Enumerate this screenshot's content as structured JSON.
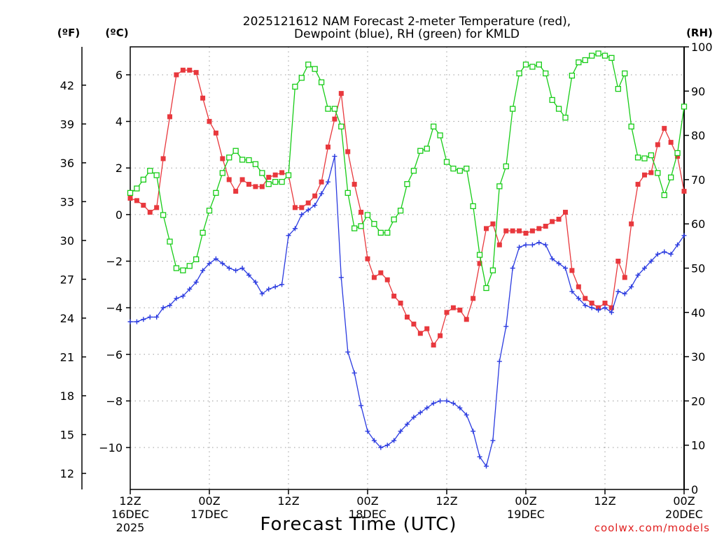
{
  "chart_data": {
    "type": "line",
    "title_line1": "2025121612 NAM Forecast 2-meter Temperature (red),",
    "title_line2": "Dewpoint (blue), RH (green) for KMLD",
    "xlabel": "Forecast Time (UTC)",
    "credit": "coolwx.com/models",
    "unit_f": "(ºF)",
    "unit_c": "(ºC)",
    "unit_rh": "(RH)",
    "x_range_hours": [
      0,
      84
    ],
    "y_celsius_range": [
      -11.8,
      7.2
    ],
    "y_rh_range": [
      0,
      100
    ],
    "x_ticks": [
      {
        "hour": 0,
        "line1": "12Z",
        "line2": "16DEC",
        "line3": "2025"
      },
      {
        "hour": 12,
        "line1": "00Z",
        "line2": "17DEC",
        "line3": ""
      },
      {
        "hour": 24,
        "line1": "12Z",
        "line2": "",
        "line3": ""
      },
      {
        "hour": 36,
        "line1": "00Z",
        "line2": "18DEC",
        "line3": ""
      },
      {
        "hour": 48,
        "line1": "12Z",
        "line2": "",
        "line3": ""
      },
      {
        "hour": 60,
        "line1": "00Z",
        "line2": "19DEC",
        "line3": ""
      },
      {
        "hour": 72,
        "line1": "12Z",
        "line2": "",
        "line3": ""
      },
      {
        "hour": 84,
        "line1": "00Z",
        "line2": "20DEC",
        "line3": ""
      }
    ],
    "y_ticks_c": [
      -10,
      -8,
      -6,
      -4,
      -2,
      0,
      2,
      4,
      6
    ],
    "y_ticks_f": [
      12,
      15,
      18,
      21,
      24,
      27,
      30,
      33,
      36,
      39,
      42
    ],
    "y_ticks_rh": [
      0,
      10,
      20,
      30,
      40,
      50,
      60,
      70,
      80,
      90,
      100
    ],
    "series": [
      {
        "name": "2-meter Temperature",
        "color": "#e8383d",
        "marker": "filled-square",
        "axis": "celsius",
        "x": [
          0,
          1,
          2,
          3,
          4,
          5,
          6,
          7,
          8,
          9,
          10,
          11,
          12,
          13,
          14,
          15,
          16,
          17,
          18,
          19,
          20,
          21,
          22,
          23,
          24,
          25,
          26,
          27,
          28,
          29,
          30,
          31,
          32,
          33,
          34,
          35,
          36,
          37,
          38,
          39,
          40,
          41,
          42,
          43,
          44,
          45,
          46,
          47,
          48,
          49,
          50,
          51,
          52,
          53,
          54,
          55,
          56,
          57,
          58,
          59,
          60,
          61,
          62,
          63,
          64,
          65,
          66,
          67,
          68,
          69,
          70,
          71,
          72,
          73,
          74,
          75,
          76,
          77,
          78,
          79,
          80,
          81,
          82,
          83,
          84
        ],
        "values": [
          0.7,
          0.6,
          0.4,
          0.1,
          0.3,
          2.4,
          4.2,
          6.0,
          6.2,
          6.2,
          6.1,
          5.0,
          4.0,
          3.5,
          2.4,
          1.5,
          1.0,
          1.5,
          1.3,
          1.2,
          1.2,
          1.6,
          1.7,
          1.8,
          1.7,
          0.3,
          0.3,
          0.5,
          0.8,
          1.4,
          2.9,
          4.1,
          5.2,
          2.7,
          1.3,
          0.1,
          -1.9,
          -2.7,
          -2.5,
          -2.8,
          -3.5,
          -3.8,
          -4.4,
          -4.7,
          -5.1,
          -4.9,
          -5.6,
          -5.2,
          -4.2,
          -4.0,
          -4.1,
          -4.5,
          -3.6,
          -2.1,
          -0.6,
          -0.4,
          -1.3,
          -0.7,
          -0.7,
          -0.7,
          -0.8,
          -0.7,
          -0.6,
          -0.5,
          -0.3,
          -0.2,
          0.1,
          -2.4,
          -3.1,
          -3.6,
          -3.8,
          -4.0,
          -3.8,
          -4.0,
          -2.0,
          -2.7,
          -0.4,
          1.3,
          1.7,
          1.8,
          3.0,
          3.7,
          3.1,
          2.5,
          1.0
        ]
      },
      {
        "name": "Dewpoint",
        "color": "#2b3be0",
        "marker": "plus",
        "axis": "celsius",
        "x": [
          0,
          1,
          2,
          3,
          4,
          5,
          6,
          7,
          8,
          9,
          10,
          11,
          12,
          13,
          14,
          15,
          16,
          17,
          18,
          19,
          20,
          21,
          22,
          23,
          24,
          25,
          26,
          27,
          28,
          29,
          30,
          31,
          32,
          33,
          34,
          35,
          36,
          37,
          38,
          39,
          40,
          41,
          42,
          43,
          44,
          45,
          46,
          47,
          48,
          49,
          50,
          51,
          52,
          53,
          54,
          55,
          56,
          57,
          58,
          59,
          60,
          61,
          62,
          63,
          64,
          65,
          66,
          67,
          68,
          69,
          70,
          71,
          72,
          73,
          74,
          75,
          76,
          77,
          78,
          79,
          80,
          81,
          82,
          83,
          84
        ],
        "values": [
          -4.6,
          -4.6,
          -4.5,
          -4.4,
          -4.4,
          -4.0,
          -3.9,
          -3.6,
          -3.5,
          -3.2,
          -2.9,
          -2.4,
          -2.1,
          -1.9,
          -2.1,
          -2.3,
          -2.4,
          -2.3,
          -2.6,
          -2.9,
          -3.4,
          -3.2,
          -3.1,
          -3.0,
          -0.9,
          -0.6,
          0.0,
          0.2,
          0.4,
          0.9,
          1.4,
          2.5,
          -2.7,
          -5.9,
          -6.8,
          -8.2,
          -9.3,
          -9.7,
          -10.0,
          -9.9,
          -9.7,
          -9.3,
          -9.0,
          -8.7,
          -8.5,
          -8.3,
          -8.1,
          -8.0,
          -8.0,
          -8.1,
          -8.3,
          -8.6,
          -9.3,
          -10.4,
          -10.8,
          -9.7,
          -6.3,
          -4.8,
          -2.3,
          -1.4,
          -1.3,
          -1.3,
          -1.2,
          -1.3,
          -1.9,
          -2.1,
          -2.3,
          -3.3,
          -3.6,
          -3.9,
          -4.0,
          -4.1,
          -4.0,
          -4.2,
          -3.3,
          -3.4,
          -3.1,
          -2.6,
          -2.3,
          -2.0,
          -1.7,
          -1.6,
          -1.7,
          -1.3,
          -0.9
        ]
      },
      {
        "name": "RH",
        "color": "#17cc17",
        "marker": "open-square",
        "axis": "rh",
        "x": [
          0,
          1,
          2,
          3,
          4,
          5,
          6,
          7,
          8,
          9,
          10,
          11,
          12,
          13,
          14,
          15,
          16,
          17,
          18,
          19,
          20,
          21,
          22,
          23,
          24,
          25,
          26,
          27,
          28,
          29,
          30,
          31,
          32,
          33,
          34,
          35,
          36,
          37,
          38,
          39,
          40,
          41,
          42,
          43,
          44,
          45,
          46,
          47,
          48,
          49,
          50,
          51,
          52,
          53,
          54,
          55,
          56,
          57,
          58,
          59,
          60,
          61,
          62,
          63,
          64,
          65,
          66,
          67,
          68,
          69,
          70,
          71,
          72,
          73,
          74,
          75,
          76,
          77,
          78,
          79,
          80,
          81,
          82,
          83,
          84
        ],
        "values": [
          67,
          68,
          70,
          72,
          71,
          62,
          56,
          50,
          49.5,
          50.5,
          52,
          58,
          63,
          67,
          71.5,
          75,
          76.5,
          74.5,
          74.4,
          73.5,
          71.5,
          69,
          69.5,
          69.5,
          71,
          91,
          93,
          96,
          95,
          92,
          86,
          86,
          82,
          67,
          59,
          59.5,
          62,
          60,
          58,
          58,
          61,
          63,
          69,
          72,
          76.5,
          77,
          82,
          80,
          74,
          72.5,
          72,
          72.5,
          64,
          53,
          45.5,
          49.5,
          68.5,
          73,
          86,
          94,
          96,
          95.5,
          96,
          94,
          88,
          86,
          84,
          93.5,
          96.5,
          97,
          98,
          98.5,
          98,
          97.5,
          90.5,
          94,
          82,
          75,
          74.8,
          75.5,
          71.5,
          66.5,
          70.5,
          76,
          86.5
        ]
      }
    ]
  }
}
